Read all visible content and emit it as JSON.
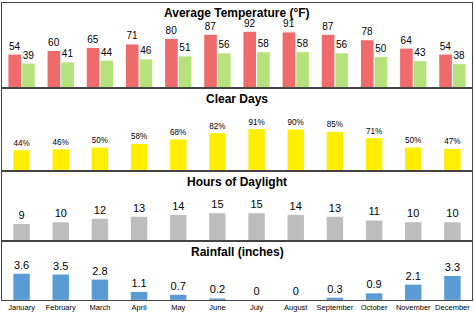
{
  "chart_data": [
    {
      "type": "bar",
      "title": "Average Temperature (°F)",
      "categories": [
        null,
        null,
        null,
        null,
        null,
        null,
        null,
        null,
        null,
        null,
        null,
        null
      ],
      "series": [
        {
          "color": "#ef6b6b",
          "values": [
            54,
            60,
            65,
            71,
            80,
            87,
            92,
            91,
            87,
            78,
            64,
            54
          ]
        },
        {
          "color": "#b5e27a",
          "values": [
            39,
            41,
            44,
            46,
            51,
            56,
            58,
            58,
            56,
            50,
            43,
            38
          ]
        }
      ],
      "ylim": [
        0,
        140
      ],
      "data_labels": true,
      "tick_labels": false
    },
    {
      "type": "bar",
      "title": "Clear Days",
      "categories": [
        null,
        null,
        null,
        null,
        null,
        null,
        null,
        null,
        null,
        null,
        null,
        null
      ],
      "values": [
        44,
        46,
        50,
        58,
        68,
        82,
        91,
        90,
        85,
        71,
        50,
        47
      ],
      "value_labels": [
        "44%",
        "46%",
        "50%",
        "58%",
        "68%",
        "82%",
        "91%",
        "90%",
        "85%",
        "71%",
        "50%",
        "47%"
      ],
      "color": "#ffee00",
      "ylim": [
        0,
        180
      ],
      "data_labels": true,
      "tick_labels": false
    },
    {
      "type": "bar",
      "title": "Hours of Daylight",
      "categories": [
        null,
        null,
        null,
        null,
        null,
        null,
        null,
        null,
        null,
        null,
        null,
        null
      ],
      "values": [
        9,
        10,
        12,
        13,
        14,
        15,
        15,
        14,
        13,
        11,
        10,
        10
      ],
      "color": "#bdbdbd",
      "ylim": [
        0,
        38
      ],
      "data_labels": true,
      "tick_labels": false
    },
    {
      "type": "bar",
      "title": "Rainfall (inches)",
      "categories": [
        "January",
        "February",
        "March",
        "April",
        "May",
        "June",
        "July",
        "August",
        "September",
        "October",
        "November",
        "December"
      ],
      "values": [
        3.6,
        3.5,
        2.8,
        1.1,
        0.7,
        0.2,
        0,
        0,
        0.3,
        0.9,
        2.1,
        3.3
      ],
      "color": "#5b9bd5",
      "ylim": [
        0,
        8
      ],
      "data_labels": true,
      "tick_labels": "x"
    }
  ]
}
